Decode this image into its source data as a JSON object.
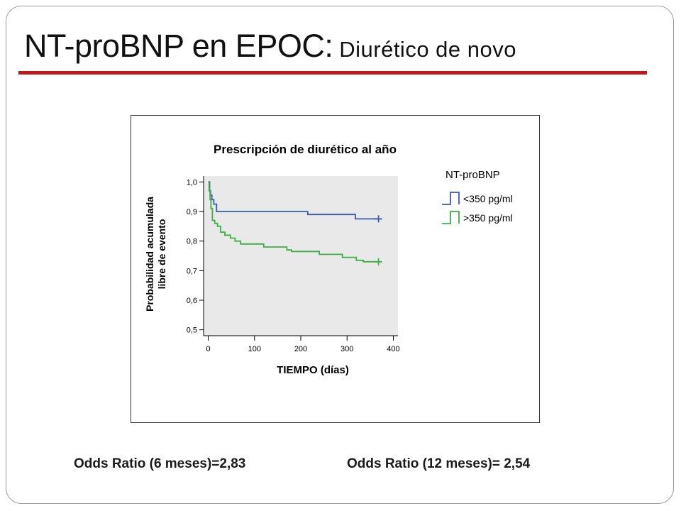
{
  "slide": {
    "title_main": "NT-proBNP en EPOC:",
    "title_sub": "Diurético de novo",
    "accent_color": "#c0171a"
  },
  "chart_data": {
    "type": "line",
    "subtype": "kaplan-meier-step",
    "title": "Prescripción de diurético al año",
    "xlabel": "TIEMPO (días)",
    "ylabel_line1": "Probabilidad acumulada",
    "ylabel_line2": "libre de evento",
    "xlim": [
      -10,
      410
    ],
    "ylim": [
      0.48,
      1.02
    ],
    "x_ticks": [
      0,
      100,
      200,
      300,
      400
    ],
    "y_ticks": [
      0.5,
      0.6,
      0.7,
      0.8,
      0.9,
      1.0
    ],
    "x_tick_labels": [
      "0",
      "100",
      "200",
      "300",
      "400"
    ],
    "y_tick_labels": [
      "0,5",
      "0,6",
      "0,7",
      "0,8",
      "0,9",
      "1,0"
    ],
    "plot_background": "#e9e9e9",
    "grid": false,
    "legend_title": "NT-proBNP",
    "legend_position": "right",
    "series": [
      {
        "name": "<350 pg/ml",
        "color": "#3a5aa8",
        "points": [
          [
            0,
            1.0
          ],
          [
            3,
            0.97
          ],
          [
            5,
            0.955
          ],
          [
            8,
            0.94
          ],
          [
            12,
            0.925
          ],
          [
            18,
            0.9
          ],
          [
            215,
            0.89
          ],
          [
            318,
            0.875
          ],
          [
            368,
            0.875
          ]
        ],
        "censor": [
          [
            368,
            0.875
          ]
        ]
      },
      {
        "name": ">350 pg/ml",
        "color": "#3cb043",
        "points": [
          [
            0,
            1.0
          ],
          [
            2,
            0.97
          ],
          [
            4,
            0.94
          ],
          [
            6,
            0.91
          ],
          [
            9,
            0.87
          ],
          [
            14,
            0.86
          ],
          [
            20,
            0.85
          ],
          [
            27,
            0.83
          ],
          [
            36,
            0.82
          ],
          [
            48,
            0.81
          ],
          [
            58,
            0.8
          ],
          [
            70,
            0.79
          ],
          [
            120,
            0.78
          ],
          [
            170,
            0.77
          ],
          [
            180,
            0.765
          ],
          [
            240,
            0.755
          ],
          [
            290,
            0.745
          ],
          [
            320,
            0.735
          ],
          [
            335,
            0.73
          ],
          [
            368,
            0.73
          ]
        ],
        "censor": [
          [
            368,
            0.73
          ]
        ]
      }
    ]
  },
  "footer": {
    "odds_6": "Odds Ratio (6 meses)=2,83",
    "odds_12": "Odds Ratio (12 meses)= 2,54"
  }
}
